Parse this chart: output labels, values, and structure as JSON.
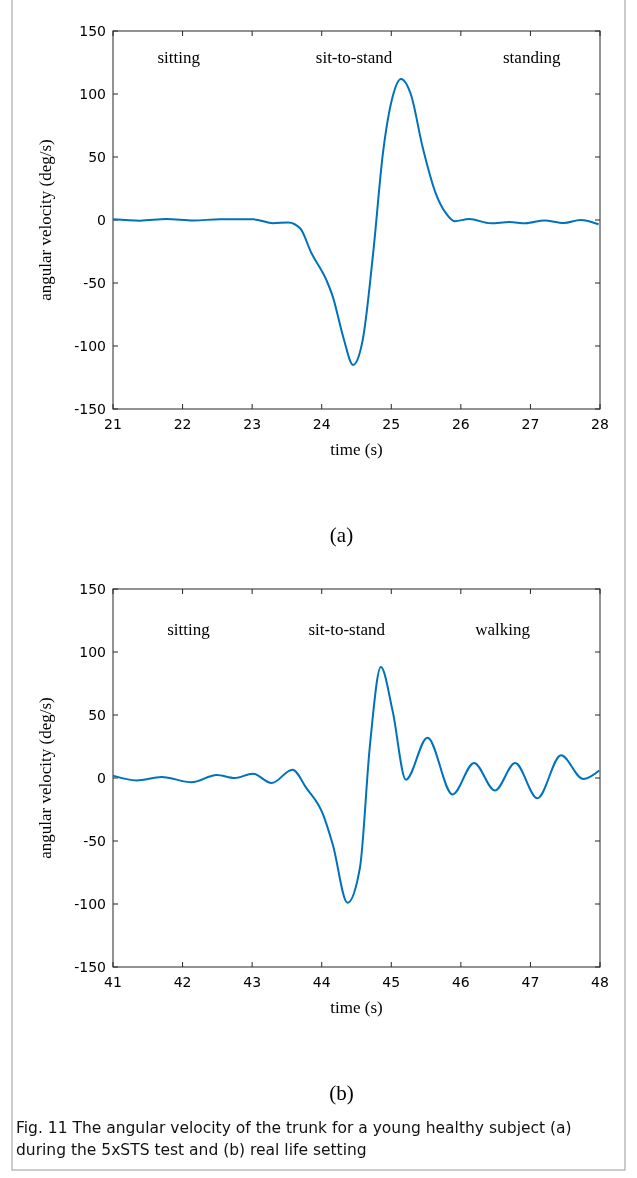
{
  "chart_data": [
    {
      "type": "line",
      "subtitle": "(a)",
      "xlabel": "time (s)",
      "ylabel": "angular velocity (deg/s)",
      "x": [
        21,
        21.39,
        21.77,
        22.16,
        22.54,
        23.02,
        23.3,
        23.52,
        23.69,
        23.85,
        24.07,
        24.16,
        24.31,
        24.45,
        24.59,
        24.74,
        24.88,
        25.02,
        25.14,
        25.28,
        25.45,
        25.64,
        25.79,
        25.91,
        26.12,
        26.43,
        26.7,
        26.93,
        27.2,
        27.48,
        27.72,
        27.98
      ],
      "series": [
        {
          "color": "#0072bd",
          "values": [
            0.5,
            -0.5,
            0.8,
            -0.3,
            0.5,
            0.5,
            -2.6,
            -1.9,
            -6.6,
            -26,
            -48,
            -61,
            -93,
            -115,
            -95,
            -26,
            53,
            98,
            112,
            100,
            58,
            21,
            5,
            -1,
            0.8,
            -2.6,
            -1.6,
            -2.6,
            -0.3,
            -2.4,
            0,
            -3.4
          ]
        }
      ],
      "xlim": [
        21,
        28
      ],
      "xticks": [
        21,
        22,
        23,
        24,
        25,
        26,
        27,
        28
      ],
      "ylim": [
        -150,
        150
      ],
      "yticks": [
        -150,
        -100,
        -50,
        0,
        50,
        100,
        150
      ],
      "grid": false,
      "marker": "none",
      "line_style": "solid",
      "annotations": [
        "sitting",
        "sit-to-stand",
        "standing"
      ]
    },
    {
      "type": "line",
      "subtitle": "(b)",
      "xlabel": "time (s)",
      "ylabel": "angular velocity (deg/s)",
      "x": [
        41,
        41.34,
        41.7,
        42.13,
        42.49,
        42.75,
        43.01,
        43.28,
        43.58,
        43.78,
        44.02,
        44.16,
        44.37,
        44.55,
        44.69,
        44.85,
        45.02,
        45.21,
        45.52,
        45.88,
        46.19,
        46.49,
        46.78,
        47.1,
        47.44,
        47.76,
        47.99
      ],
      "series": [
        {
          "color": "#0072bd",
          "values": [
            1.9,
            -1.9,
            0.8,
            -3.4,
            2.4,
            0,
            3.4,
            -4,
            6.6,
            -8,
            -29,
            -53,
            -99,
            -71,
            24,
            88,
            53,
            -1.3,
            32,
            -13,
            12,
            -10,
            12,
            -16,
            18,
            -0.8,
            6
          ]
        }
      ],
      "xlim": [
        41,
        48
      ],
      "xticks": [
        41,
        42,
        43,
        44,
        45,
        46,
        47,
        48
      ],
      "ylim": [
        -150,
        150
      ],
      "yticks": [
        -150,
        -100,
        -50,
        0,
        50,
        100,
        150
      ],
      "grid": false,
      "marker": "none",
      "line_style": "solid",
      "annotations": [
        "sitting",
        "sit-to-stand",
        "walking",
        "Fig. 11 The angular velocity of the trunk for a young healthy subject (a) during the 5xSTS test and (b) real life setting"
      ]
    }
  ]
}
